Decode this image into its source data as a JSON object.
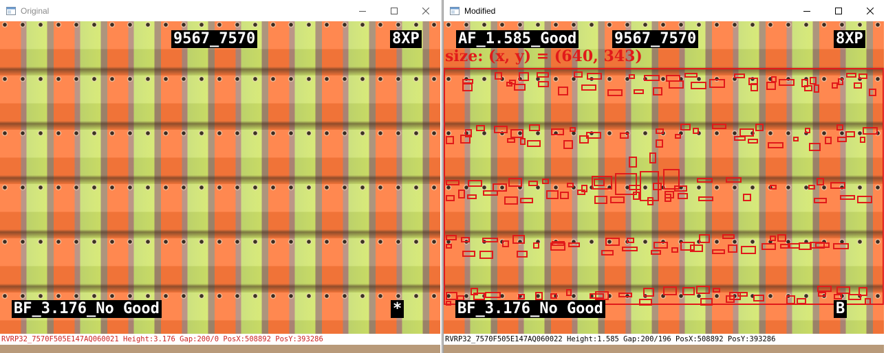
{
  "colors": {
    "overlay_bg": "#000000",
    "overlay_text": "#ffffff",
    "annotation_red": "#e11a1a",
    "status_red": "#cc2222"
  },
  "left_window": {
    "title": "Original",
    "icon": "app-window-icon",
    "overlay_top_id": "9567_7570",
    "overlay_top_right": "8XP",
    "overlay_bottom_left": "BF_3.176_No Good",
    "overlay_bottom_right": "*",
    "status": "RVRP32_7570F505E147AQ060021 Height:3.176 Gap:200/0 PosX:508892 PosY:393286"
  },
  "right_window": {
    "title": "Modified",
    "icon": "app-window-icon",
    "overlay_top_left": "AF_1.585_Good",
    "overlay_top_id": "9567_7570",
    "overlay_top_right": "8XP",
    "size_label": "size: (x, y) = (640, 343)",
    "overlay_bottom_left": "BF_3.176_No Good",
    "overlay_bottom_right": "B",
    "status": "RVRP32_7570F505E147AQ060022 Height:1.585 Gap:200/196 PosX:508892 PosY:393286"
  },
  "window_controls": [
    "minimize-icon",
    "maximize-icon",
    "close-icon"
  ]
}
